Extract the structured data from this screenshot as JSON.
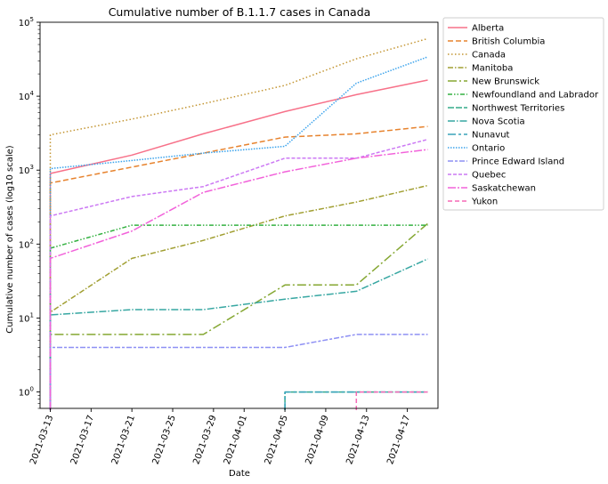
{
  "chart_data": {
    "type": "line",
    "title": "Cumulative number of B.1.1.7 cases in Canada",
    "xlabel": "Date",
    "ylabel": "Cumulative number of cases (log10 scale)",
    "yscale": "log",
    "ylim": [
      0.6,
      100000
    ],
    "xlim": [
      "2021-03-12",
      "2021-04-20"
    ],
    "x_ticks": [
      "2021-03-13",
      "2021-03-17",
      "2021-03-21",
      "2021-03-25",
      "2021-03-29",
      "2021-04-01",
      "2021-04-05",
      "2021-04-09",
      "2021-04-13",
      "2021-04-17"
    ],
    "y_ticks": [
      {
        "value": 1,
        "base": "10",
        "exp": "0"
      },
      {
        "value": 10,
        "base": "10",
        "exp": "1"
      },
      {
        "value": 100,
        "base": "10",
        "exp": "2"
      },
      {
        "value": 1000,
        "base": "10",
        "exp": "3"
      },
      {
        "value": 10000,
        "base": "10",
        "exp": "4"
      },
      {
        "value": 100000,
        "base": "10",
        "exp": "5"
      }
    ],
    "grid": false,
    "legend_position": "outside-top-right",
    "x": [
      "2021-03-13",
      "2021-03-21",
      "2021-03-28",
      "2021-04-05",
      "2021-04-12",
      "2021-04-19"
    ],
    "series": [
      {
        "name": "Alberta",
        "color": "#f77189",
        "dash": "",
        "values": [
          900,
          1600,
          3100,
          6200,
          10500,
          16500
        ]
      },
      {
        "name": "British Columbia",
        "color": "#e7832e",
        "dash": "6,3",
        "values": [
          670,
          1100,
          1700,
          2800,
          3100,
          3900
        ]
      },
      {
        "name": "Canada",
        "color": "#c39532",
        "dash": "1.5,2.5",
        "values": [
          3000,
          4900,
          7900,
          14000,
          32000,
          60000
        ]
      },
      {
        "name": "Manitoba",
        "color": "#a19f32",
        "dash": "6,2,1.5,2",
        "values": [
          12,
          64,
          112,
          240,
          370,
          620
        ]
      },
      {
        "name": "New Brunswick",
        "color": "#85a732",
        "dash": "10,3,2,3",
        "values": [
          6,
          6,
          6,
          28,
          28,
          190
        ]
      },
      {
        "name": "Newfoundland and Labrador",
        "color": "#33b140",
        "dash": "5,2,1.5,2,1.5,2",
        "values": [
          88,
          180,
          180,
          180,
          180,
          180
        ]
      },
      {
        "name": "Northwest Territories",
        "color": "#35ab8a",
        "dash": "7,2",
        "values": [
          null,
          null,
          null,
          1,
          1,
          1
        ]
      },
      {
        "name": "Nova Scotia",
        "color": "#37a7a2",
        "dash": "8,2,1.5,2",
        "values": [
          11,
          13,
          13,
          18,
          23,
          63
        ]
      },
      {
        "name": "Nunavut",
        "color": "#38a4ba",
        "dash": "9,3,3,3",
        "values": [
          null,
          null,
          null,
          1,
          1,
          1
        ]
      },
      {
        "name": "Ontario",
        "color": "#3ba3ec",
        "dash": "1.5,1.5",
        "values": [
          1050,
          1350,
          1700,
          2100,
          15000,
          34000
        ]
      },
      {
        "name": "Prince Edward Island",
        "color": "#8e90f4",
        "dash": "6,2,3,2",
        "values": [
          4,
          4,
          4,
          4,
          6,
          6
        ]
      },
      {
        "name": "Quebec",
        "color": "#cc79f4",
        "dash": "4,2",
        "values": [
          240,
          440,
          600,
          1450,
          1450,
          2600
        ]
      },
      {
        "name": "Saskatchewan",
        "color": "#f262da",
        "dash": "9,2,2,2",
        "values": [
          64,
          150,
          500,
          950,
          1450,
          1900
        ]
      },
      {
        "name": "Yukon",
        "color": "#f669b6",
        "dash": "5,3",
        "values": [
          null,
          null,
          null,
          null,
          1,
          1
        ]
      }
    ]
  }
}
